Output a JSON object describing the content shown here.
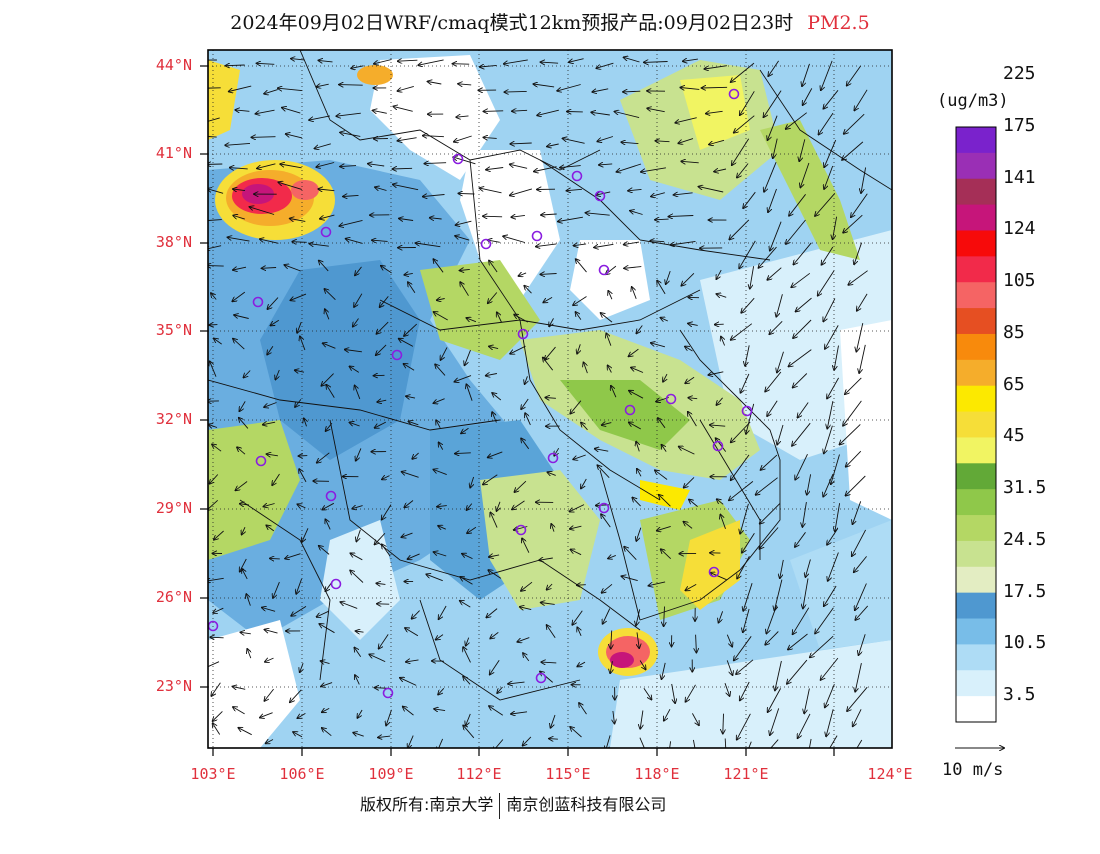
{
  "title": {
    "main": "2024年09月02日WRF/cmaq模式12km预报产品:09月02日23时",
    "pollutant": "PM2.5",
    "pollutant_color": "#e0303c"
  },
  "credit": {
    "owner": "版权所有:南京大学",
    "company": "南京创蓝科技有限公司"
  },
  "map": {
    "lat_labels": [
      "44°N",
      "41°N",
      "38°N",
      "35°N",
      "32°N",
      "29°N",
      "26°N",
      "23°N"
    ],
    "lon_labels": [
      "103°E",
      "106°E",
      "109°E",
      "112°E",
      "115°E",
      "118°E",
      "121°E",
      "124°E"
    ],
    "label_color": "#e0303c",
    "hotspots": [
      {
        "name": "northwest-inner-mongolia",
        "level": "high"
      },
      {
        "name": "pearl-river-delta",
        "level": "high"
      },
      {
        "name": "north-china-plain",
        "level": "moderate"
      },
      {
        "name": "fujian-coast",
        "level": "moderate"
      }
    ]
  },
  "colorbar": {
    "unit": "(ug/m3)",
    "colors": [
      "#ffffff",
      "#d8f0fb",
      "#aedcf5",
      "#78bde8",
      "#4f98d0",
      "#e3edc2",
      "#c8e290",
      "#b4d764",
      "#8fc84a",
      "#62a937",
      "#f1f462",
      "#f6de38",
      "#fce900",
      "#f5ad2b",
      "#f88a0c",
      "#e64f22",
      "#f56464",
      "#f22a4a",
      "#f70a0a",
      "#c6157a",
      "#a52f57",
      "#9a2fb5",
      "#7a22cc"
    ],
    "labels": [
      "3.5",
      "10.5",
      "17.5",
      "24.5",
      "31.5",
      "45",
      "65",
      "85",
      "105",
      "124",
      "141",
      "175",
      "225"
    ]
  },
  "wind_reference": {
    "label": "10 m/s"
  },
  "city_markers_color": "#8a1de0"
}
